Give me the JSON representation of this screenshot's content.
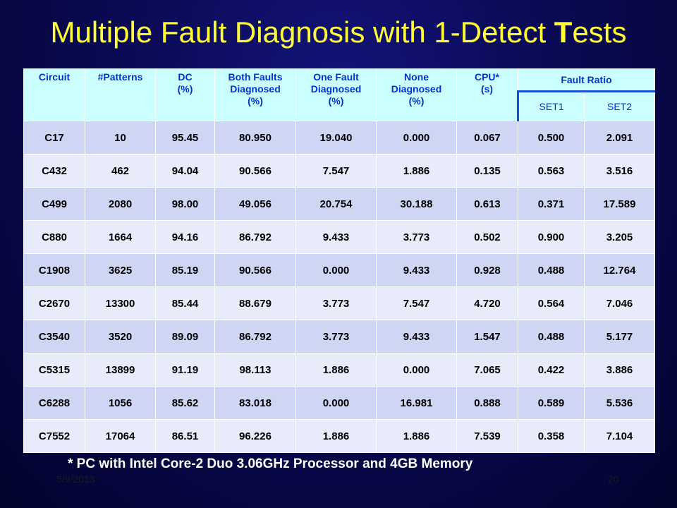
{
  "slide": {
    "title_main": "Multiple Fault Diagnosis with 1-Detect ",
    "title_bold": "T",
    "title_end": "ests",
    "footnote": "* PC with Intel Core-2 Duo 3.06GHz Processor and 4GB Memory",
    "date": "5/9/2013",
    "page_number": "20"
  },
  "table": {
    "headers": {
      "circuit": "Circuit",
      "patterns": "#Patterns",
      "dc_line1": "DC",
      "dc_line2": "(%)",
      "both_line1": "Both Faults",
      "both_line2": "Diagnosed",
      "both_line3": "(%)",
      "one_line1": "One Fault",
      "one_line2": "Diagnosed",
      "one_line3": "(%)",
      "none_line1": "None",
      "none_line2": "Diagnosed",
      "none_line3": "(%)",
      "cpu_line1": "CPU*",
      "cpu_line2": "(s)",
      "fault_ratio": "Fault Ratio",
      "set1": "SET1",
      "set2": "SET2"
    },
    "rows": [
      [
        "C17",
        "10",
        "95.45",
        "80.950",
        "19.040",
        "0.000",
        "0.067",
        "0.500",
        "2.091"
      ],
      [
        "C432",
        "462",
        "94.04",
        "90.566",
        "7.547",
        "1.886",
        "0.135",
        "0.563",
        "3.516"
      ],
      [
        "C499",
        "2080",
        "98.00",
        "49.056",
        "20.754",
        "30.188",
        "0.613",
        "0.371",
        "17.589"
      ],
      [
        "C880",
        "1664",
        "94.16",
        "86.792",
        "9.433",
        "3.773",
        "0.502",
        "0.900",
        "3.205"
      ],
      [
        "C1908",
        "3625",
        "85.19",
        "90.566",
        "0.000",
        "9.433",
        "0.928",
        "0.488",
        "12.764"
      ],
      [
        "C2670",
        "13300",
        "85.44",
        "88.679",
        "3.773",
        "7.547",
        "4.720",
        "0.564",
        "7.046"
      ],
      [
        "C3540",
        "3520",
        "89.09",
        "86.792",
        "3.773",
        "9.433",
        "1.547",
        "0.488",
        "5.177"
      ],
      [
        "C5315",
        "13899",
        "91.19",
        "98.113",
        "1.886",
        "0.000",
        "7.065",
        "0.422",
        "3.886"
      ],
      [
        "C6288",
        "1056",
        "85.62",
        "83.018",
        "0.000",
        "16.981",
        "0.888",
        "0.589",
        "5.536"
      ],
      [
        "C7552",
        "17064",
        "86.51",
        "96.226",
        "1.886",
        "1.886",
        "7.539",
        "0.358",
        "7.104"
      ]
    ]
  },
  "colors": {
    "title": "#ffff33",
    "header_bg": "#ccffff",
    "header_text": "#0033cc",
    "row_odd": "#cfd6f4",
    "row_even": "#e7ebfa"
  }
}
